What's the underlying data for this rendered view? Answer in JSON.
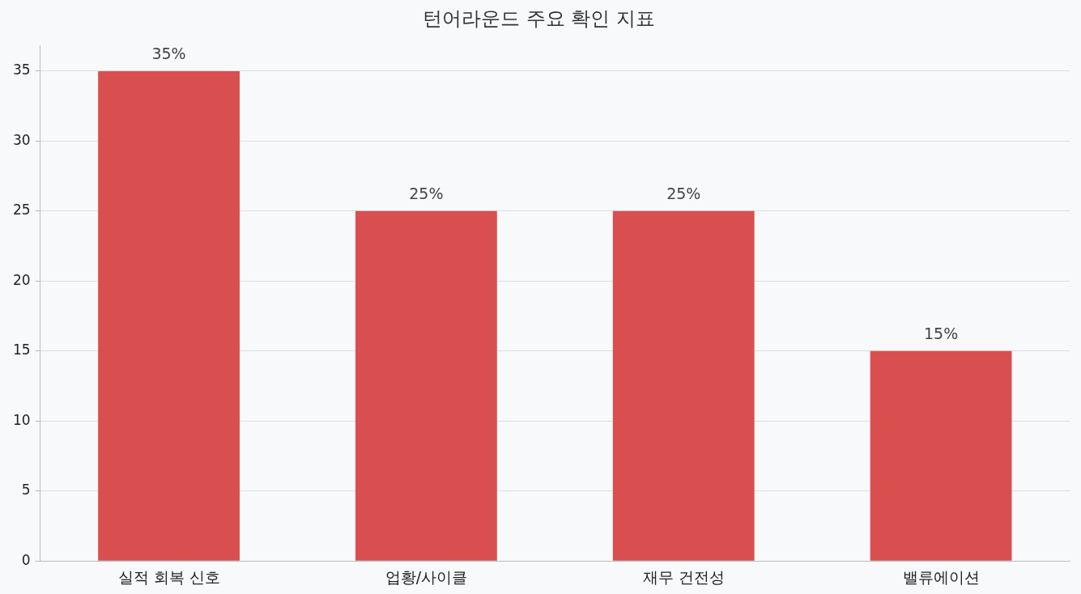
{
  "chart_data": {
    "type": "bar",
    "title": "턴어라운드 주요 확인 지표",
    "categories": [
      "실적 회복 신호",
      "업황/사이클",
      "재무 건전성",
      "밸류에이션"
    ],
    "values": [
      35,
      25,
      25,
      15
    ],
    "value_labels": [
      "35%",
      "25%",
      "25%",
      "15%"
    ],
    "color": "#d94f4f",
    "ylim": [
      0,
      36.8
    ],
    "yticks": [
      0,
      5,
      10,
      15,
      20,
      25,
      30,
      35
    ],
    "grid": "y",
    "legend": false
  }
}
